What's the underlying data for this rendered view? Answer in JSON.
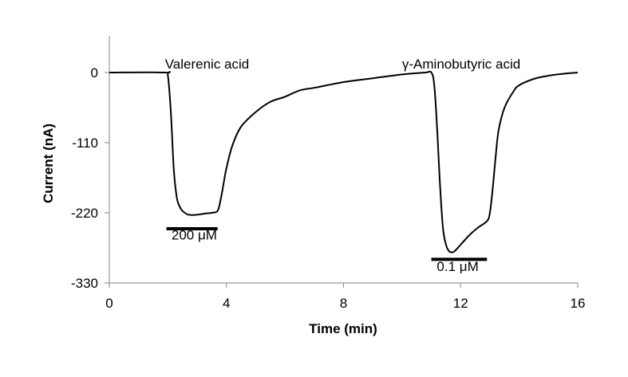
{
  "chart_data": {
    "type": "line",
    "title": "",
    "xlabel": "Time (min)",
    "ylabel": "Current (nA)",
    "xlim": [
      0,
      16
    ],
    "ylim": [
      -330,
      0
    ],
    "xticks": [
      0,
      4,
      8,
      12,
      16
    ],
    "yticks": [
      0,
      -110,
      -220,
      -330
    ],
    "xtick_labels": [
      "0",
      "4",
      "8",
      "12",
      "16"
    ],
    "ytick_labels": [
      "0",
      "-110",
      "-220",
      "-330"
    ],
    "grid": false,
    "legend": "none",
    "line_color": "#000000",
    "series": [
      {
        "x": [
          0,
          1.9,
          2.0,
          2.1,
          2.2,
          2.3,
          2.4,
          2.5,
          2.7,
          3.0,
          3.3,
          3.5,
          3.7,
          3.8,
          3.9,
          4.0,
          4.2,
          4.5,
          5.0,
          5.5,
          6.0,
          6.5,
          7.0,
          8.0,
          9.0,
          10.0,
          10.8,
          11.0,
          11.1,
          11.2,
          11.3,
          11.4,
          11.5,
          11.6,
          11.7,
          11.8,
          12.0,
          12.3,
          12.6,
          12.9,
          13.0,
          13.1,
          13.2,
          13.3,
          13.5,
          13.8,
          14.0,
          14.5,
          15.0,
          15.5,
          16.0
        ],
        "y": [
          0,
          0,
          -5,
          -60,
          -150,
          -195,
          -210,
          -217,
          -223,
          -223,
          -221,
          -220,
          -217,
          -200,
          -175,
          -150,
          -115,
          -85,
          -62,
          -46,
          -38,
          -28,
          -24,
          -15,
          -9,
          -3,
          0,
          0,
          -20,
          -90,
          -180,
          -245,
          -270,
          -280,
          -282,
          -280,
          -270,
          -255,
          -243,
          -233,
          -220,
          -180,
          -130,
          -90,
          -55,
          -30,
          -20,
          -10,
          -5,
          -2,
          0
        ]
      }
    ],
    "annotations": [
      {
        "text": "Valerenic acid",
        "x": 1.9,
        "y": 6
      },
      {
        "text": "γ-Aminobutyric acid",
        "x": 10.0,
        "y": 6
      },
      {
        "text": "200 μM",
        "x": 2.9,
        "y": -262,
        "bar": [
          1.95,
          3.7
        ],
        "bar_y": -245
      },
      {
        "text": "0.1 μM",
        "x": 11.9,
        "y": -311,
        "bar": [
          11.0,
          12.9
        ],
        "bar_y": -293
      }
    ]
  }
}
